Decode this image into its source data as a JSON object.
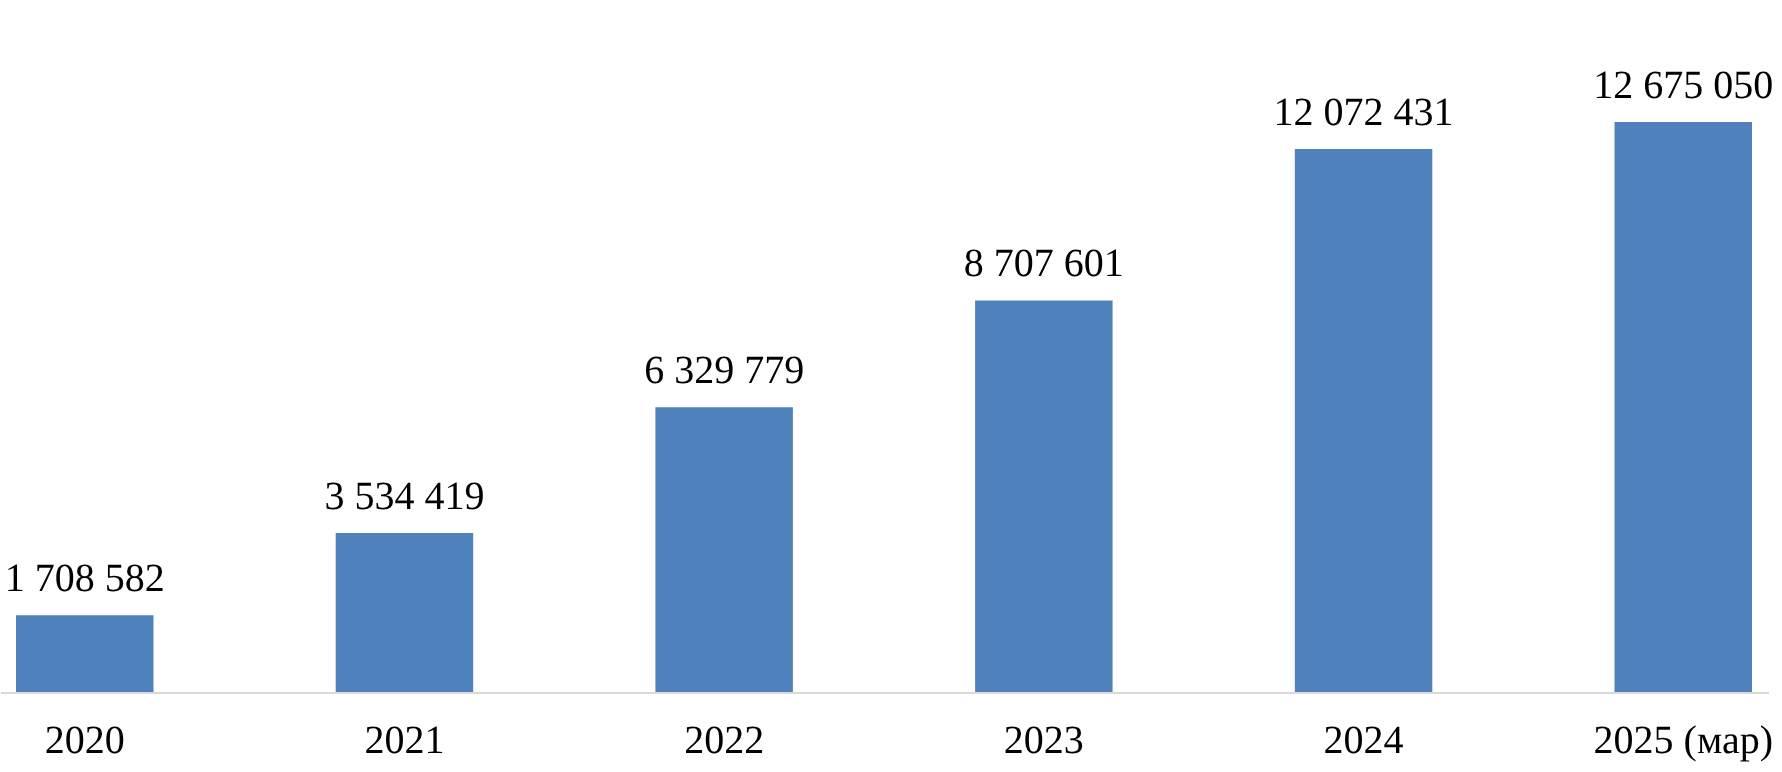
{
  "chart_data": {
    "type": "bar",
    "categories": [
      "2020",
      "2021",
      "2022",
      "2023",
      "2024",
      "2025 (мар)"
    ],
    "values": [
      1708582,
      3534419,
      6329779,
      8707601,
      12072431,
      12675050
    ],
    "value_labels": [
      "1 708 582",
      "3 534 419",
      "6 329 779",
      "8 707 601",
      "12 072 431",
      "12 675 050"
    ],
    "color": "#4f81bd",
    "grid": false
  }
}
